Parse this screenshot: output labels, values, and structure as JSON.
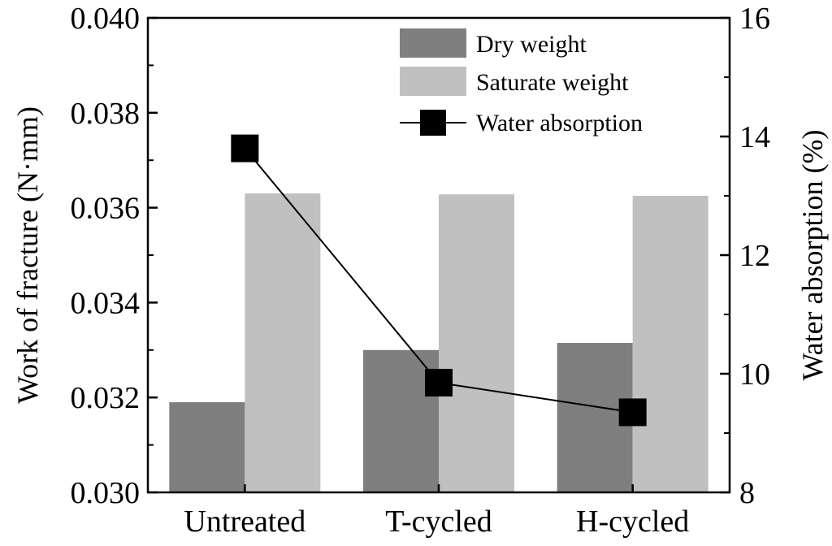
{
  "chart_data": {
    "type": "bar+line",
    "categories": [
      "Untreated",
      "T-cycled",
      "H-cycled"
    ],
    "series": [
      {
        "name": "Dry weight",
        "axis": "left",
        "kind": "bar",
        "color": "#7f7f7f",
        "values": [
          0.0319,
          0.033,
          0.03315
        ]
      },
      {
        "name": "Saturate weight",
        "axis": "left",
        "kind": "bar",
        "color": "#c0c0c0",
        "values": [
          0.0363,
          0.03628,
          0.03625
        ]
      },
      {
        "name": "Water absorption",
        "axis": "right",
        "kind": "line",
        "color": "#000000",
        "marker": "square",
        "values": [
          13.8,
          9.85,
          9.35
        ]
      }
    ],
    "ylabel_left": "Work of fracture (N·mm)",
    "ylabel_right": "Water absorption (%)",
    "ylim_left": [
      0.03,
      0.04
    ],
    "ylim_right": [
      8,
      16
    ],
    "yticks_left": [
      "0.030",
      "0.032",
      "0.034",
      "0.036",
      "0.038",
      "0.040"
    ],
    "yticks_right": [
      "8",
      "10",
      "12",
      "14",
      "16"
    ],
    "legend_position": "top-right"
  }
}
